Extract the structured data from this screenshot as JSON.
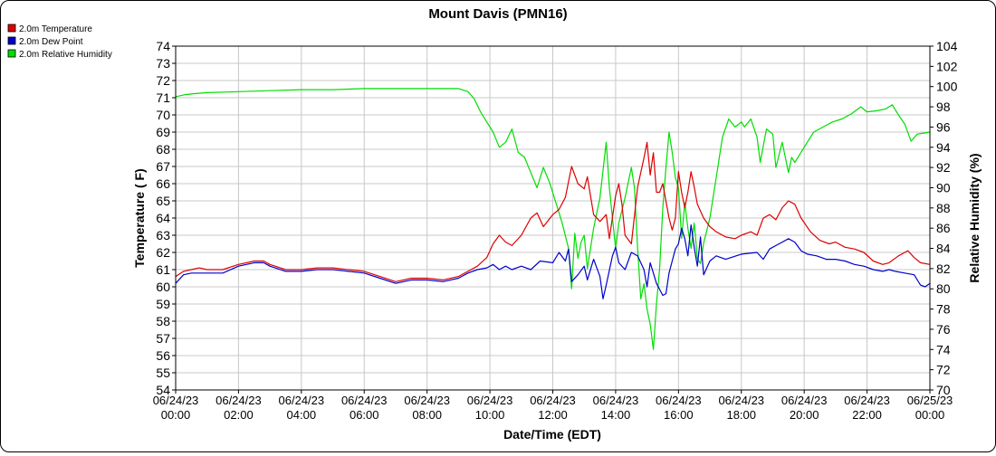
{
  "chart_data": {
    "type": "line",
    "title": "Mount Davis (PMN16)",
    "xlabel": "Date/Time (EDT)",
    "ylabel_left": "Temperature ( F)",
    "ylabel_right": "Relative Humidity (%)",
    "ylim_left": [
      54,
      74
    ],
    "ylim_right": [
      70,
      104
    ],
    "xlim_hours": [
      0,
      24
    ],
    "grid": true,
    "legend_position": "top-left",
    "x_ticks": [
      {
        "hour": 0,
        "date": "06/24/23",
        "time": "00:00"
      },
      {
        "hour": 2,
        "date": "06/24/23",
        "time": "02:00"
      },
      {
        "hour": 4,
        "date": "06/24/23",
        "time": "04:00"
      },
      {
        "hour": 6,
        "date": "06/24/23",
        "time": "06:00"
      },
      {
        "hour": 8,
        "date": "06/24/23",
        "time": "08:00"
      },
      {
        "hour": 10,
        "date": "06/24/23",
        "time": "10:00"
      },
      {
        "hour": 12,
        "date": "06/24/23",
        "time": "12:00"
      },
      {
        "hour": 14,
        "date": "06/24/23",
        "time": "14:00"
      },
      {
        "hour": 16,
        "date": "06/24/23",
        "time": "16:00"
      },
      {
        "hour": 18,
        "date": "06/24/23",
        "time": "18:00"
      },
      {
        "hour": 20,
        "date": "06/24/23",
        "time": "20:00"
      },
      {
        "hour": 22,
        "date": "06/24/23",
        "time": "22:00"
      },
      {
        "hour": 24,
        "date": "06/25/23",
        "time": "00:00"
      }
    ],
    "y_ticks_left": [
      54,
      55,
      56,
      57,
      58,
      59,
      60,
      61,
      62,
      63,
      64,
      65,
      66,
      67,
      68,
      69,
      70,
      71,
      72,
      73,
      74
    ],
    "y_ticks_right": [
      70,
      72,
      74,
      76,
      78,
      80,
      82,
      84,
      86,
      88,
      90,
      92,
      94,
      96,
      98,
      100,
      102,
      104
    ],
    "series": [
      {
        "name": "2.0m Temperature",
        "color": "#dd0000",
        "axis": "left",
        "points": [
          [
            0,
            60.6
          ],
          [
            0.25,
            60.9
          ],
          [
            0.5,
            61.0
          ],
          [
            0.75,
            61.1
          ],
          [
            1,
            61.0
          ],
          [
            1.5,
            61.0
          ],
          [
            2,
            61.3
          ],
          [
            2.5,
            61.5
          ],
          [
            2.8,
            61.5
          ],
          [
            3,
            61.3
          ],
          [
            3.5,
            61.0
          ],
          [
            4,
            61.0
          ],
          [
            4.5,
            61.1
          ],
          [
            5,
            61.1
          ],
          [
            5.5,
            61.0
          ],
          [
            6,
            60.9
          ],
          [
            6.5,
            60.6
          ],
          [
            7,
            60.3
          ],
          [
            7.5,
            60.5
          ],
          [
            8,
            60.5
          ],
          [
            8.5,
            60.4
          ],
          [
            9,
            60.6
          ],
          [
            9.3,
            60.9
          ],
          [
            9.6,
            61.2
          ],
          [
            9.9,
            61.7
          ],
          [
            10.1,
            62.5
          ],
          [
            10.3,
            63.0
          ],
          [
            10.5,
            62.6
          ],
          [
            10.7,
            62.4
          ],
          [
            11,
            63.0
          ],
          [
            11.3,
            64.0
          ],
          [
            11.5,
            64.3
          ],
          [
            11.7,
            63.5
          ],
          [
            12,
            64.2
          ],
          [
            12.2,
            64.5
          ],
          [
            12.4,
            65.2
          ],
          [
            12.6,
            67.0
          ],
          [
            12.8,
            66.0
          ],
          [
            13,
            65.7
          ],
          [
            13.1,
            66.4
          ],
          [
            13.3,
            64.2
          ],
          [
            13.5,
            63.8
          ],
          [
            13.7,
            64.2
          ],
          [
            13.8,
            62.8
          ],
          [
            14,
            65.3
          ],
          [
            14.1,
            66.0
          ],
          [
            14.2,
            64.8
          ],
          [
            14.3,
            63.0
          ],
          [
            14.5,
            62.5
          ],
          [
            14.7,
            65.8
          ],
          [
            14.9,
            67.5
          ],
          [
            15.0,
            68.4
          ],
          [
            15.1,
            66.5
          ],
          [
            15.2,
            67.8
          ],
          [
            15.3,
            65.5
          ],
          [
            15.4,
            65.5
          ],
          [
            15.5,
            66.0
          ],
          [
            15.7,
            64.0
          ],
          [
            15.8,
            63.3
          ],
          [
            15.9,
            64.0
          ],
          [
            16,
            66.7
          ],
          [
            16.1,
            65.5
          ],
          [
            16.2,
            64.6
          ],
          [
            16.3,
            65.5
          ],
          [
            16.4,
            66.7
          ],
          [
            16.5,
            65.8
          ],
          [
            16.6,
            64.8
          ],
          [
            16.8,
            64.0
          ],
          [
            17,
            63.5
          ],
          [
            17.2,
            63.2
          ],
          [
            17.5,
            62.9
          ],
          [
            17.8,
            62.8
          ],
          [
            18,
            63.0
          ],
          [
            18.3,
            63.2
          ],
          [
            18.5,
            63.0
          ],
          [
            18.7,
            64.0
          ],
          [
            18.9,
            64.2
          ],
          [
            19.1,
            63.9
          ],
          [
            19.3,
            64.6
          ],
          [
            19.5,
            65.0
          ],
          [
            19.7,
            64.8
          ],
          [
            19.9,
            64.0
          ],
          [
            20.2,
            63.2
          ],
          [
            20.5,
            62.7
          ],
          [
            20.8,
            62.5
          ],
          [
            21.0,
            62.6
          ],
          [
            21.3,
            62.3
          ],
          [
            21.6,
            62.2
          ],
          [
            21.9,
            62.0
          ],
          [
            22.2,
            61.5
          ],
          [
            22.5,
            61.3
          ],
          [
            22.7,
            61.4
          ],
          [
            23,
            61.8
          ],
          [
            23.3,
            62.1
          ],
          [
            23.5,
            61.7
          ],
          [
            23.7,
            61.4
          ],
          [
            24,
            61.3
          ]
        ]
      },
      {
        "name": "2.0m Dew Point",
        "color": "#0000cc",
        "axis": "left",
        "points": [
          [
            0,
            60.2
          ],
          [
            0.25,
            60.7
          ],
          [
            0.5,
            60.8
          ],
          [
            1,
            60.8
          ],
          [
            1.5,
            60.8
          ],
          [
            2,
            61.2
          ],
          [
            2.5,
            61.4
          ],
          [
            2.8,
            61.4
          ],
          [
            3,
            61.2
          ],
          [
            3.5,
            60.9
          ],
          [
            4,
            60.9
          ],
          [
            4.5,
            61.0
          ],
          [
            5,
            61.0
          ],
          [
            5.5,
            60.9
          ],
          [
            6,
            60.8
          ],
          [
            6.5,
            60.5
          ],
          [
            7,
            60.2
          ],
          [
            7.5,
            60.4
          ],
          [
            8,
            60.4
          ],
          [
            8.5,
            60.3
          ],
          [
            9,
            60.5
          ],
          [
            9.3,
            60.8
          ],
          [
            9.6,
            61.0
          ],
          [
            9.9,
            61.1
          ],
          [
            10.1,
            61.3
          ],
          [
            10.3,
            61.0
          ],
          [
            10.5,
            61.2
          ],
          [
            10.7,
            61.0
          ],
          [
            11,
            61.2
          ],
          [
            11.3,
            61.0
          ],
          [
            11.6,
            61.5
          ],
          [
            12,
            61.4
          ],
          [
            12.2,
            62.0
          ],
          [
            12.4,
            61.5
          ],
          [
            12.5,
            62.2
          ],
          [
            12.6,
            60.3
          ],
          [
            12.8,
            60.7
          ],
          [
            13,
            61.2
          ],
          [
            13.1,
            60.4
          ],
          [
            13.3,
            61.6
          ],
          [
            13.5,
            60.6
          ],
          [
            13.6,
            59.3
          ],
          [
            13.7,
            60.1
          ],
          [
            13.9,
            61.8
          ],
          [
            14,
            62.3
          ],
          [
            14.1,
            61.4
          ],
          [
            14.3,
            61.0
          ],
          [
            14.5,
            62.0
          ],
          [
            14.7,
            61.8
          ],
          [
            14.9,
            61.0
          ],
          [
            15.0,
            60.0
          ],
          [
            15.1,
            61.4
          ],
          [
            15.2,
            60.8
          ],
          [
            15.3,
            60.2
          ],
          [
            15.5,
            59.5
          ],
          [
            15.6,
            59.6
          ],
          [
            15.7,
            60.8
          ],
          [
            15.8,
            61.5
          ],
          [
            15.9,
            62.2
          ],
          [
            16,
            62.5
          ],
          [
            16.1,
            63.4
          ],
          [
            16.2,
            62.8
          ],
          [
            16.3,
            61.8
          ],
          [
            16.4,
            63.6
          ],
          [
            16.5,
            62.3
          ],
          [
            16.6,
            61.2
          ],
          [
            16.7,
            62.9
          ],
          [
            16.8,
            60.7
          ],
          [
            17,
            61.5
          ],
          [
            17.2,
            61.8
          ],
          [
            17.5,
            61.6
          ],
          [
            18,
            61.9
          ],
          [
            18.5,
            62.0
          ],
          [
            18.7,
            61.6
          ],
          [
            18.9,
            62.2
          ],
          [
            19.1,
            62.4
          ],
          [
            19.3,
            62.6
          ],
          [
            19.5,
            62.8
          ],
          [
            19.7,
            62.6
          ],
          [
            19.9,
            62.1
          ],
          [
            20.1,
            61.9
          ],
          [
            20.4,
            61.8
          ],
          [
            20.7,
            61.6
          ],
          [
            21,
            61.6
          ],
          [
            21.3,
            61.5
          ],
          [
            21.6,
            61.3
          ],
          [
            21.9,
            61.2
          ],
          [
            22.2,
            61.0
          ],
          [
            22.5,
            60.9
          ],
          [
            22.7,
            61.0
          ],
          [
            22.9,
            60.9
          ],
          [
            23.2,
            60.8
          ],
          [
            23.5,
            60.7
          ],
          [
            23.7,
            60.1
          ],
          [
            23.85,
            60.0
          ],
          [
            24,
            60.2
          ]
        ]
      },
      {
        "name": "2.0m Relative Humidity",
        "color": "#00dd00",
        "axis": "right",
        "points": [
          [
            0,
            99.0
          ],
          [
            0.3,
            99.2
          ],
          [
            0.6,
            99.3
          ],
          [
            1,
            99.4
          ],
          [
            2,
            99.5
          ],
          [
            3,
            99.6
          ],
          [
            4,
            99.7
          ],
          [
            5,
            99.7
          ],
          [
            6,
            99.8
          ],
          [
            7,
            99.8
          ],
          [
            8,
            99.8
          ],
          [
            9,
            99.8
          ],
          [
            9.3,
            99.5
          ],
          [
            9.5,
            98.8
          ],
          [
            9.7,
            97.5
          ],
          [
            9.9,
            96.5
          ],
          [
            10.1,
            95.5
          ],
          [
            10.3,
            94.0
          ],
          [
            10.5,
            94.5
          ],
          [
            10.7,
            95.8
          ],
          [
            10.9,
            93.5
          ],
          [
            11.1,
            93.0
          ],
          [
            11.3,
            91.5
          ],
          [
            11.5,
            90.0
          ],
          [
            11.7,
            92.0
          ],
          [
            11.9,
            90.5
          ],
          [
            12.1,
            88.5
          ],
          [
            12.3,
            86.5
          ],
          [
            12.5,
            84.0
          ],
          [
            12.6,
            80.0
          ],
          [
            12.7,
            85.5
          ],
          [
            12.8,
            83.0
          ],
          [
            12.9,
            84.6
          ],
          [
            13.0,
            85.3
          ],
          [
            13.1,
            82.0
          ],
          [
            13.3,
            86.0
          ],
          [
            13.5,
            89.0
          ],
          [
            13.7,
            94.5
          ],
          [
            13.8,
            90.0
          ],
          [
            13.9,
            87.0
          ],
          [
            14.0,
            84.0
          ],
          [
            14.1,
            86.5
          ],
          [
            14.3,
            89.0
          ],
          [
            14.5,
            92.0
          ],
          [
            14.6,
            90.0
          ],
          [
            14.7,
            84.0
          ],
          [
            14.8,
            79.0
          ],
          [
            14.9,
            80.5
          ],
          [
            15.0,
            78.0
          ],
          [
            15.1,
            76.5
          ],
          [
            15.2,
            74.0
          ],
          [
            15.3,
            78.5
          ],
          [
            15.4,
            82.0
          ],
          [
            15.5,
            88.0
          ],
          [
            15.6,
            92.0
          ],
          [
            15.7,
            95.5
          ],
          [
            15.8,
            93.5
          ],
          [
            15.9,
            91.0
          ],
          [
            16.0,
            90.0
          ],
          [
            16.1,
            85.0
          ],
          [
            16.2,
            88.5
          ],
          [
            16.3,
            86.0
          ],
          [
            16.4,
            84.0
          ],
          [
            16.5,
            86.5
          ],
          [
            16.6,
            83.0
          ],
          [
            16.7,
            82.5
          ],
          [
            16.8,
            84.5
          ],
          [
            17,
            87.0
          ],
          [
            17.2,
            91.0
          ],
          [
            17.4,
            95.0
          ],
          [
            17.6,
            96.8
          ],
          [
            17.8,
            96.0
          ],
          [
            18,
            96.5
          ],
          [
            18.1,
            96.0
          ],
          [
            18.3,
            96.8
          ],
          [
            18.5,
            95.0
          ],
          [
            18.6,
            92.5
          ],
          [
            18.8,
            95.8
          ],
          [
            19.0,
            95.3
          ],
          [
            19.1,
            92.0
          ],
          [
            19.3,
            94.5
          ],
          [
            19.5,
            91.5
          ],
          [
            19.6,
            93.0
          ],
          [
            19.7,
            92.5
          ],
          [
            19.9,
            93.5
          ],
          [
            20.1,
            94.5
          ],
          [
            20.3,
            95.5
          ],
          [
            20.6,
            96.0
          ],
          [
            20.9,
            96.5
          ],
          [
            21.2,
            96.8
          ],
          [
            21.5,
            97.3
          ],
          [
            21.8,
            98.0
          ],
          [
            22.0,
            97.5
          ],
          [
            22.3,
            97.6
          ],
          [
            22.6,
            97.8
          ],
          [
            22.8,
            98.2
          ],
          [
            23.0,
            97.2
          ],
          [
            23.2,
            96.3
          ],
          [
            23.4,
            94.6
          ],
          [
            23.6,
            95.3
          ],
          [
            23.8,
            95.4
          ],
          [
            24,
            95.5
          ]
        ]
      }
    ]
  }
}
